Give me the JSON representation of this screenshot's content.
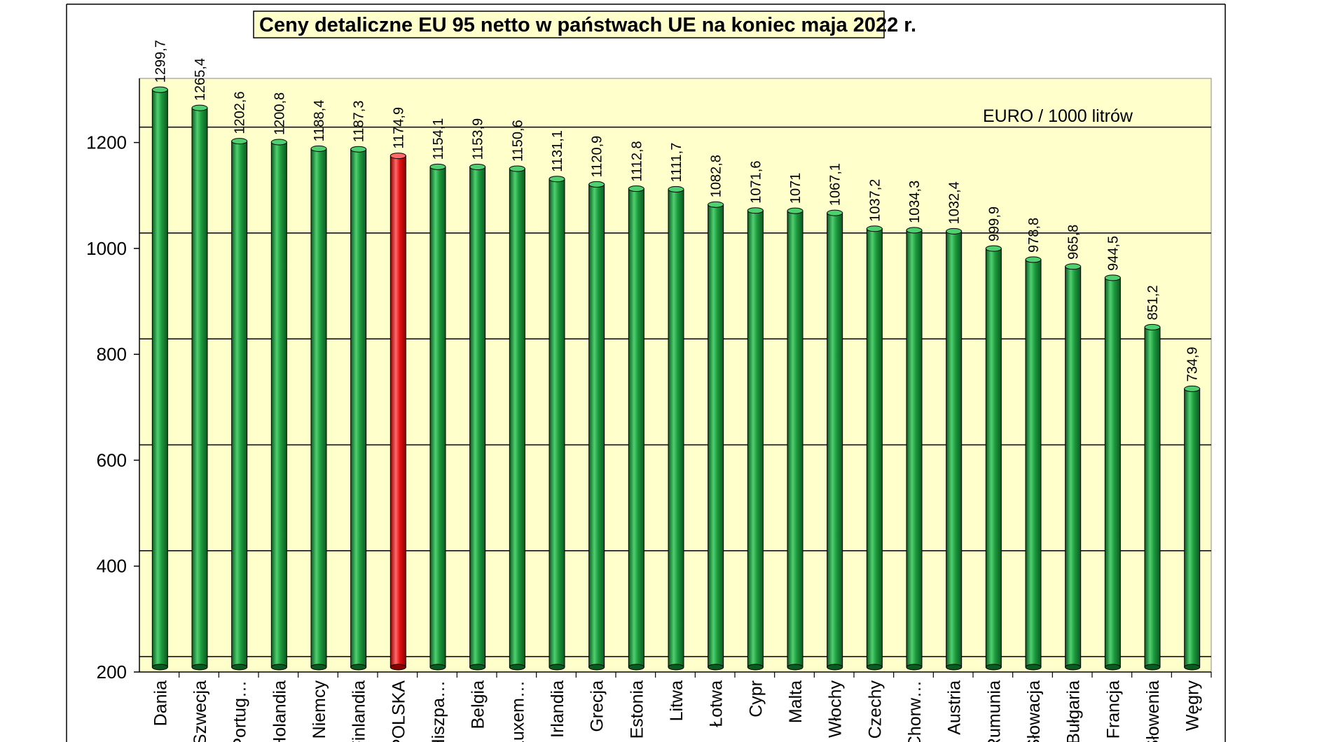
{
  "chart_data": {
    "type": "bar",
    "title": "Ceny detaliczne EU 95 netto w państwach UE na koniec maja 2022 r.",
    "unit_label": "EURO / 1000 litrów",
    "xlabel": "",
    "ylabel": "",
    "ylim": [
      200,
      1320
    ],
    "yticks": [
      200,
      400,
      600,
      800,
      1000,
      1200
    ],
    "grid": true,
    "categories": [
      "Dania",
      "Szwecja",
      "Portug…",
      "Holandia",
      "Niemcy",
      "Finlandia",
      "POLSKA",
      "Hiszpa…",
      "Belgia",
      "Luxem…",
      "Irlandia",
      "Grecja",
      "Estonia",
      "Litwa",
      "Łotwa",
      "Cypr",
      "Malta",
      "Włochy",
      "Czechy",
      "Chorw…",
      "Austria",
      "Rumunia",
      "Słowacja",
      "Bułgaria",
      "Francja",
      "Słowenia",
      "Węgry"
    ],
    "values": [
      1299.7,
      1265.4,
      1202.6,
      1200.8,
      1188.4,
      1187.3,
      1174.9,
      1154.1,
      1153.9,
      1150.6,
      1131.1,
      1120.9,
      1112.8,
      1111.7,
      1082.8,
      1071.6,
      1071,
      1067.1,
      1037.2,
      1034.3,
      1032.4,
      999.9,
      978.8,
      965.8,
      944.5,
      851.2,
      734.9
    ],
    "value_labels": [
      "1299,7",
      "1265,4",
      "1202,6",
      "1200,8",
      "1188,4",
      "1187,3",
      "1174,9",
      "1154,1",
      "1153,9",
      "1150,6",
      "1131,1",
      "1120,9",
      "1112,8",
      "1111,7",
      "1082,8",
      "1071,6",
      "1071",
      "1067,1",
      "1037,2",
      "1034,3",
      "1032,4",
      "999,9",
      "978,8",
      "965,8",
      "944,5",
      "851,2",
      "734,9"
    ],
    "highlight_index": 6,
    "colors": {
      "bar": "#1e9a3e",
      "bar_dark": "#0b5a20",
      "bar_light": "#4fd070",
      "highlight": "#e41010",
      "highlight_dark": "#8a0000",
      "highlight_light": "#ff6a6a",
      "plot_background": "#ffffcc",
      "grid": "#000000"
    }
  }
}
